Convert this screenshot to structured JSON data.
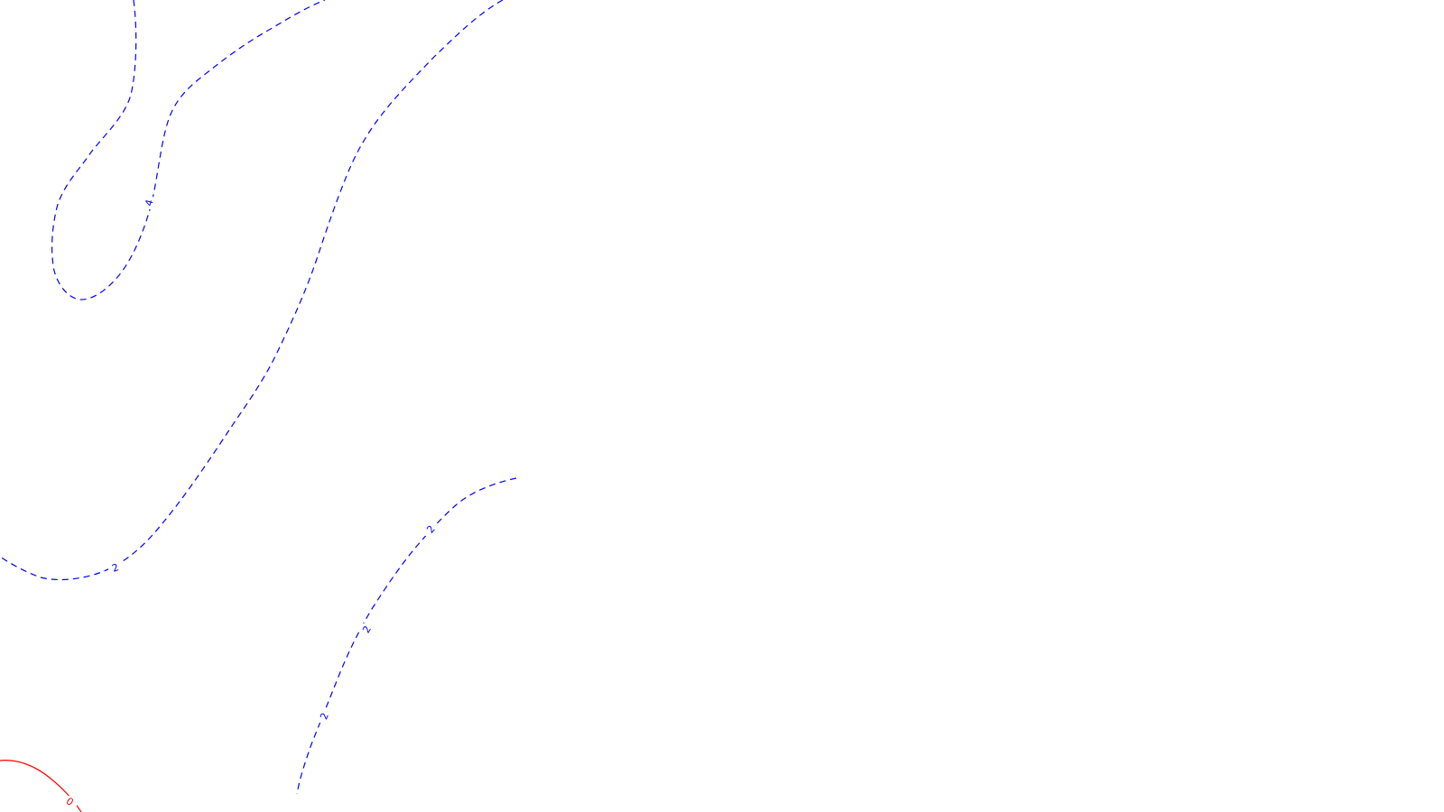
{
  "colors": {
    "background": "#ffffff",
    "negative_contour": "#0000ff",
    "zero_contour": "#ff0000"
  },
  "contours": {
    "line_style_negative": "dashed",
    "line_style_zero": "solid",
    "labels": [
      {
        "id": "label-4",
        "text": "4"
      },
      {
        "id": "label-2a",
        "text": "2"
      },
      {
        "id": "label-2b",
        "text": "2"
      },
      {
        "id": "label-2c",
        "text": "2"
      },
      {
        "id": "label-2d",
        "text": "2"
      },
      {
        "id": "label-0",
        "text": "0"
      }
    ]
  }
}
